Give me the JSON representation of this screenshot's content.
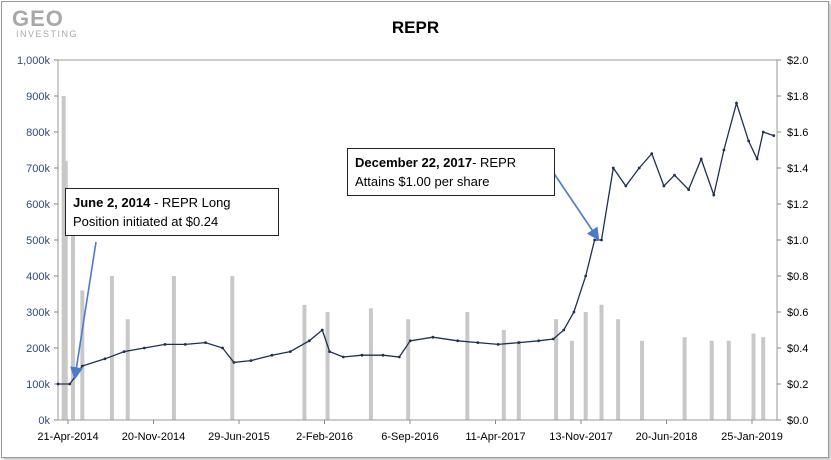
{
  "logo": {
    "main": "GEO",
    "sub": "INVESTING"
  },
  "chart_data": {
    "type": "line+bar",
    "title": "REPR",
    "x_tick_labels": [
      "21-Apr-2014",
      "20-Nov-2014",
      "29-Jun-2015",
      "2-Feb-2016",
      "6-Sep-2016",
      "11-Apr-2017",
      "13-Nov-2017",
      "20-Jun-2018",
      "25-Jan-2019"
    ],
    "left_axis": {
      "ticks": [
        "0k",
        "100k",
        "200k",
        "300k",
        "400k",
        "500k",
        "600k",
        "700k",
        "800k",
        "900k",
        "1,000k"
      ],
      "ylim": [
        0,
        1000000
      ]
    },
    "right_axis": {
      "ticks": [
        "$0.0",
        "$0.2",
        "$0.4",
        "$0.6",
        "$0.8",
        "$1.0",
        "$1.2",
        "$1.4",
        "$1.6",
        "$1.8",
        "$2.0"
      ],
      "ylim": [
        0,
        2.0
      ]
    },
    "series": [
      {
        "kind": "line",
        "axis": "right",
        "color": "#1f3150",
        "x": [
          "2014-04-21",
          "2014-05-20",
          "2014-06-02",
          "2014-06-20",
          "2014-08-15",
          "2014-10-01",
          "2014-11-20",
          "2015-01-10",
          "2015-03-01",
          "2015-04-20",
          "2015-06-01",
          "2015-06-29",
          "2015-08-10",
          "2015-10-01",
          "2015-11-15",
          "2016-01-01",
          "2016-02-02",
          "2016-02-20",
          "2016-03-25",
          "2016-05-10",
          "2016-07-01",
          "2016-08-10",
          "2016-09-06",
          "2016-11-01",
          "2017-01-01",
          "2017-02-20",
          "2017-04-11",
          "2017-06-01",
          "2017-07-20",
          "2017-08-25",
          "2017-09-20",
          "2017-10-15",
          "2017-11-13",
          "2017-12-05",
          "2017-12-22",
          "2018-01-20",
          "2018-02-20",
          "2018-03-25",
          "2018-04-25",
          "2018-05-25",
          "2018-06-20",
          "2018-07-25",
          "2018-08-25",
          "2018-09-25",
          "2018-10-20",
          "2018-11-20",
          "2018-12-20",
          "2019-01-10",
          "2019-01-25",
          "2019-02-20"
        ],
        "values": [
          0.2,
          0.2,
          0.24,
          0.3,
          0.34,
          0.38,
          0.4,
          0.42,
          0.42,
          0.43,
          0.4,
          0.32,
          0.33,
          0.36,
          0.38,
          0.44,
          0.5,
          0.38,
          0.35,
          0.36,
          0.36,
          0.35,
          0.44,
          0.46,
          0.44,
          0.43,
          0.42,
          0.43,
          0.44,
          0.45,
          0.5,
          0.6,
          0.8,
          1.0,
          1.0,
          1.4,
          1.3,
          1.4,
          1.48,
          1.3,
          1.36,
          1.28,
          1.45,
          1.25,
          1.5,
          1.76,
          1.55,
          1.45,
          1.6,
          1.58
        ]
      },
      {
        "kind": "bar",
        "axis": "left",
        "color": "#c8c8c8",
        "x": [
          "2014-05-05",
          "2014-05-10",
          "2014-05-28",
          "2014-06-20",
          "2014-09-01",
          "2014-10-10",
          "2015-02-01",
          "2015-06-25",
          "2015-12-20",
          "2016-02-15",
          "2016-06-01",
          "2016-09-01",
          "2017-01-25",
          "2017-04-25",
          "2017-06-01",
          "2017-09-01",
          "2017-10-10",
          "2017-11-13",
          "2017-12-22",
          "2018-02-01",
          "2018-04-01",
          "2018-07-15",
          "2018-09-20",
          "2018-11-01",
          "2019-01-01",
          "2019-01-25"
        ],
        "values": [
          900000,
          720000,
          520000,
          360000,
          400000,
          280000,
          400000,
          400000,
          320000,
          300000,
          310000,
          280000,
          300000,
          250000,
          220000,
          280000,
          220000,
          300000,
          320000,
          280000,
          220000,
          230000,
          220000,
          220000,
          240000,
          230000
        ]
      }
    ],
    "annotations": [
      {
        "bold": "June 2, 2014",
        "text": " - REPR Long",
        "line2": "Position initiated at $0.24",
        "x": "2014-06-02",
        "y": 0.24
      },
      {
        "bold": "December 22, 2017",
        "text": "- REPR",
        "line2": "Attains $1.00 per share",
        "x": "2017-12-22",
        "y": 1.0
      }
    ]
  }
}
